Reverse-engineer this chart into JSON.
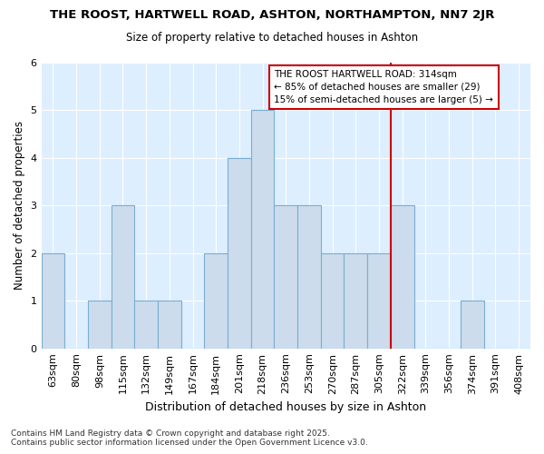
{
  "title1": "THE ROOST, HARTWELL ROAD, ASHTON, NORTHAMPTON, NN7 2JR",
  "title2": "Size of property relative to detached houses in Ashton",
  "xlabel": "Distribution of detached houses by size in Ashton",
  "ylabel": "Number of detached properties",
  "categories": [
    "63sqm",
    "80sqm",
    "98sqm",
    "115sqm",
    "132sqm",
    "149sqm",
    "167sqm",
    "184sqm",
    "201sqm",
    "218sqm",
    "236sqm",
    "253sqm",
    "270sqm",
    "287sqm",
    "305sqm",
    "322sqm",
    "339sqm",
    "356sqm",
    "374sqm",
    "391sqm",
    "408sqm"
  ],
  "values": [
    2,
    0,
    1,
    3,
    1,
    1,
    0,
    2,
    4,
    5,
    3,
    3,
    2,
    2,
    2,
    3,
    0,
    0,
    1,
    0,
    0
  ],
  "bar_color": "#ccdcec",
  "bar_edge_color": "#7aaed0",
  "property_line_index": 15,
  "property_line_color": "#cc0000",
  "ylim": [
    0,
    6
  ],
  "yticks": [
    0,
    1,
    2,
    3,
    4,
    5,
    6
  ],
  "annotation_text": "THE ROOST HARTWELL ROAD: 314sqm\n← 85% of detached houses are smaller (29)\n15% of semi-detached houses are larger (5) →",
  "annotation_box_color": "#cc0000",
  "footer": "Contains HM Land Registry data © Crown copyright and database right 2025.\nContains public sector information licensed under the Open Government Licence v3.0.",
  "bg_color": "#ffffff",
  "plot_bg_color": "#ddeeff"
}
